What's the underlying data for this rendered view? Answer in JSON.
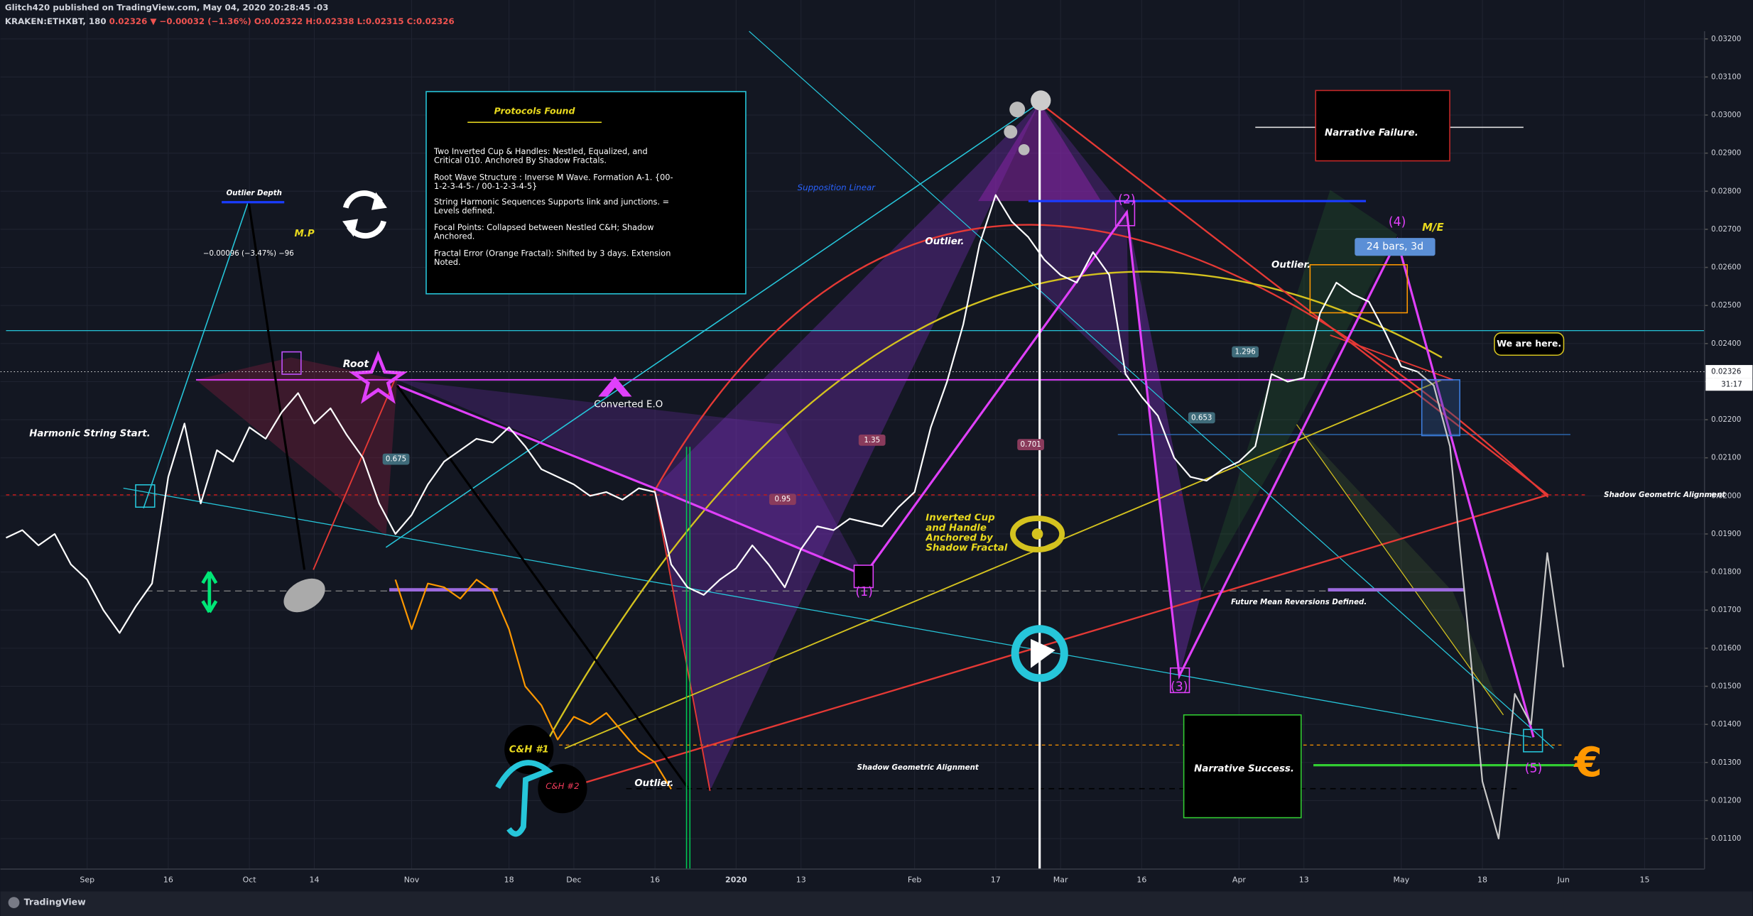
{
  "header": {
    "publisher": "Glitch420 published on TradingView.com, May 04, 2020 20:28:45 -03",
    "symbol": "KRAKEN:ETHXBT, 180",
    "change": "0.02326 ▼ −0.00032 (−1.36%)",
    "ohlc": "O:0.02322 H:0.02338 L:0.02315 C:0.02326"
  },
  "footer": "TradingView",
  "protocols": {
    "title": "Protocols Found",
    "items": [
      "Two Inverted Cup & Handles: Nestled, Equalized, and Critical 010. Anchored By Shadow Fractals.",
      "Root Wave Structure : Inverse M Wave. Formation A-1. {00-1-2-3-4-5- / 00-1-2-3-4-5}",
      "String Harmonic Sequences Supports link and junctions. = Levels defined.",
      "Focal Points: Collapsed between Nestled C&H; Shadow Anchored.",
      "Fractal Error (Orange Fractal): Shifted by 3 days. Extension Noted."
    ]
  },
  "annotations": [
    "Outlier Depth",
    "M.P",
    "−0.00096 (−3.47%) −96",
    "Harmonic String Start.",
    "Root",
    "Converted E.O",
    "Supposition Linear",
    "Outlier.",
    "(2)",
    "Narrative Failure.",
    "Outlier.",
    "(4)",
    "M/E",
    "24 bars, 3d",
    "We are here.",
    "Shadow Geometric Alignment",
    "Inverted Cup and Handle Anchored by Shadow Fractal",
    "Future Mean Reversions Defined.",
    "(3)",
    "(1)",
    "Narrative Success.",
    "(5)",
    "C&H #1",
    "C&H #2",
    "Outlier.",
    "Shadow Geometric Alignment",
    "€"
  ],
  "ratio_labels": [
    "0.675",
    "1.296",
    "0.653",
    "0.701",
    "0.95",
    "1.35"
  ],
  "chart_data": {
    "type": "line",
    "grid": true,
    "categories": [
      null,
      null,
      null,
      null,
      null,
      "Sep",
      null,
      null,
      null,
      null,
      "16",
      null,
      null,
      null,
      null,
      "Oct",
      null,
      null,
      null,
      "14",
      null,
      null,
      null,
      null,
      null,
      "Nov",
      null,
      null,
      null,
      null,
      null,
      "18",
      null,
      null,
      null,
      "Dec",
      null,
      null,
      null,
      null,
      "16",
      null,
      null,
      null,
      null,
      "2020",
      null,
      null,
      null,
      "13",
      null,
      null,
      null,
      null,
      null,
      null,
      "Feb",
      null,
      null,
      null,
      null,
      "17",
      null,
      null,
      null,
      "Mar",
      null,
      null,
      null,
      null,
      "16",
      null,
      null,
      null,
      null,
      null,
      "Apr",
      null,
      null,
      null,
      "13",
      null,
      null,
      null,
      null,
      null,
      "May",
      null,
      null,
      null,
      null,
      "18",
      null,
      null,
      null,
      null,
      "Jun",
      null,
      null,
      null,
      null,
      "15",
      null,
      null,
      null
    ],
    "series": [
      {
        "color": "#ffffff",
        "values": [
          0.0189,
          0.0191,
          0.0187,
          0.019,
          0.0182,
          0.0178,
          0.017,
          0.0164,
          0.0171,
          0.0177,
          0.0205,
          0.0219,
          0.0198,
          0.0212,
          0.0209,
          0.0218,
          0.0215,
          0.0222,
          0.0227,
          0.0219,
          0.0223,
          0.0216,
          0.021,
          0.0198,
          0.019,
          0.0195,
          0.0203,
          0.0209,
          0.0212,
          0.0215,
          0.0214,
          0.0218,
          0.0213,
          0.0207,
          0.0205,
          0.0203,
          0.02,
          0.0201,
          0.0199,
          0.0202,
          0.0201,
          0.0182,
          0.0176,
          0.0174,
          0.0178,
          0.0181,
          0.0187,
          0.0182,
          0.0176,
          0.0186,
          0.0192,
          0.0191,
          0.0194,
          0.0193,
          0.0192,
          0.0197,
          0.0201,
          0.0218,
          0.023,
          0.0245,
          0.0266,
          0.0279,
          0.0272,
          0.0268,
          0.0262,
          0.0258,
          0.0256,
          0.0264,
          0.0258,
          0.0232,
          0.0226,
          0.0221,
          0.021,
          0.0205,
          0.0204,
          0.0207,
          0.0209,
          0.0213,
          0.0232,
          0.023,
          0.0231,
          0.0248,
          0.0256,
          0.0253,
          0.0251,
          0.0243,
          0.0234,
          0.02326,
          null,
          null,
          null,
          null,
          null,
          null,
          null,
          null,
          null,
          null,
          null,
          null,
          null,
          null,
          null,
          null,
          null
        ]
      },
      {
        "color": "#c8c8c8",
        "values": [
          null,
          null,
          null,
          null,
          null,
          null,
          null,
          null,
          null,
          null,
          null,
          null,
          null,
          null,
          null,
          null,
          null,
          null,
          null,
          null,
          null,
          null,
          null,
          null,
          null,
          null,
          null,
          null,
          null,
          null,
          null,
          null,
          null,
          null,
          null,
          null,
          null,
          null,
          null,
          null,
          null,
          null,
          null,
          null,
          null,
          null,
          null,
          null,
          null,
          null,
          null,
          null,
          null,
          null,
          null,
          null,
          null,
          null,
          null,
          null,
          null,
          null,
          null,
          null,
          null,
          null,
          null,
          null,
          null,
          null,
          null,
          null,
          null,
          null,
          null,
          null,
          null,
          null,
          null,
          null,
          null,
          null,
          null,
          null,
          null,
          null,
          null,
          0.02326,
          0.0229,
          0.0213,
          0.017,
          0.0125,
          0.011,
          0.0148,
          0.014,
          0.0185,
          0.0155,
          null,
          null,
          null,
          null,
          null,
          null,
          null,
          null
        ]
      },
      {
        "color": "#ff9800",
        "values": [
          null,
          null,
          null,
          null,
          null,
          null,
          null,
          null,
          null,
          null,
          null,
          null,
          null,
          null,
          null,
          null,
          null,
          null,
          null,
          null,
          null,
          null,
          null,
          null,
          0.0178,
          0.0165,
          0.0177,
          0.0176,
          0.0173,
          0.0178,
          0.0175,
          0.0165,
          0.015,
          0.0145,
          0.0136,
          0.0142,
          0.014,
          0.0143,
          0.0138,
          0.0133,
          0.013,
          0.0123,
          null,
          null,
          null,
          null,
          null,
          null,
          null,
          null,
          null,
          null,
          null,
          null,
          null,
          null,
          null,
          null,
          null,
          null,
          null,
          null,
          null,
          null,
          null,
          null,
          null,
          null,
          null,
          null,
          null,
          null,
          null,
          null,
          null,
          null,
          null,
          null,
          null,
          null,
          null,
          null,
          null,
          null,
          null,
          null,
          null,
          null,
          null,
          null,
          null,
          null,
          null,
          null,
          null,
          null,
          null,
          null,
          null,
          null,
          null,
          null,
          null,
          null,
          null
        ]
      }
    ],
    "ylim": [
      0.0102,
      0.0322
    ],
    "yticks": [
      {
        "value": 0.011,
        "label": "0.01100"
      },
      {
        "value": 0.012,
        "label": "0.01200"
      },
      {
        "value": 0.013,
        "label": "0.01300"
      },
      {
        "value": 0.014,
        "label": "0.01400"
      },
      {
        "value": 0.015,
        "label": "0.01500"
      },
      {
        "value": 0.016,
        "label": "0.01600"
      },
      {
        "value": 0.017,
        "label": "0.01700"
      },
      {
        "value": 0.018,
        "label": "0.01800"
      },
      {
        "value": 0.019,
        "label": "0.01900"
      },
      {
        "value": 0.02,
        "label": "0.02000"
      },
      {
        "value": 0.021,
        "label": "0.02100"
      },
      {
        "value": 0.022,
        "label": "0.02200"
      },
      {
        "value": 0.023,
        "label": "0.02300"
      },
      {
        "value": 0.024,
        "label": "0.02400"
      },
      {
        "value": 0.025,
        "label": "0.02500"
      },
      {
        "value": 0.026,
        "label": "0.02600"
      },
      {
        "value": 0.027,
        "label": "0.02700"
      },
      {
        "value": 0.028,
        "label": "0.02800"
      },
      {
        "value": 0.029,
        "label": "0.02900"
      },
      {
        "value": 0.03,
        "label": "0.03000"
      },
      {
        "value": 0.031,
        "label": "0.03100"
      },
      {
        "value": 0.032,
        "label": "0.03200"
      }
    ],
    "last_price": {
      "value": 0.02326,
      "label": "0.02326"
    },
    "countdown": "31:17"
  }
}
